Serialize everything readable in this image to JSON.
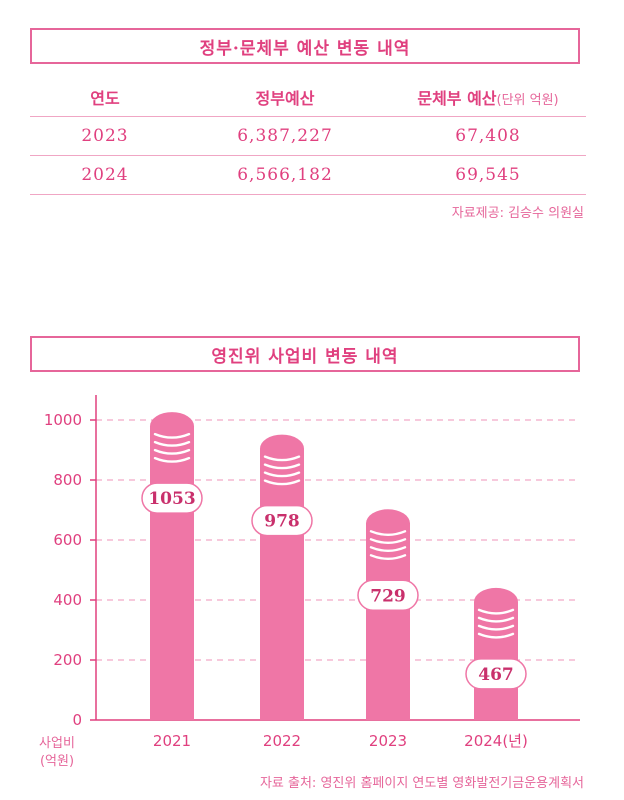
{
  "table": {
    "title": "정부·문체부 예산 변동 내역",
    "headers": [
      "연도",
      "정부예산",
      "문체부 예산"
    ],
    "unit": "(단위 억원)",
    "rows": [
      [
        "2023",
        "6,387,227",
        "67,408"
      ],
      [
        "2024",
        "6,566,182",
        "69,545"
      ]
    ],
    "source": "자료제공: 김승수 의원실"
  },
  "chart_data": {
    "type": "bar",
    "title": "영진위 사업비 변동 내역",
    "categories": [
      "2021",
      "2022",
      "2023",
      "2024(년)"
    ],
    "values": [
      1053,
      978,
      729,
      467
    ],
    "ylabel": "사업비\n(억원)",
    "yticks": [
      0,
      200,
      400,
      600,
      800,
      1000
    ],
    "ylim": [
      0,
      1100
    ],
    "grid": true,
    "source": "자료 출처: 영진위 홈페이지 연도별 영화발전기금운용계획서"
  },
  "colors": {
    "accent": "#e0407f",
    "bar": "#ef76a6",
    "grid": "#f2a9c7"
  }
}
